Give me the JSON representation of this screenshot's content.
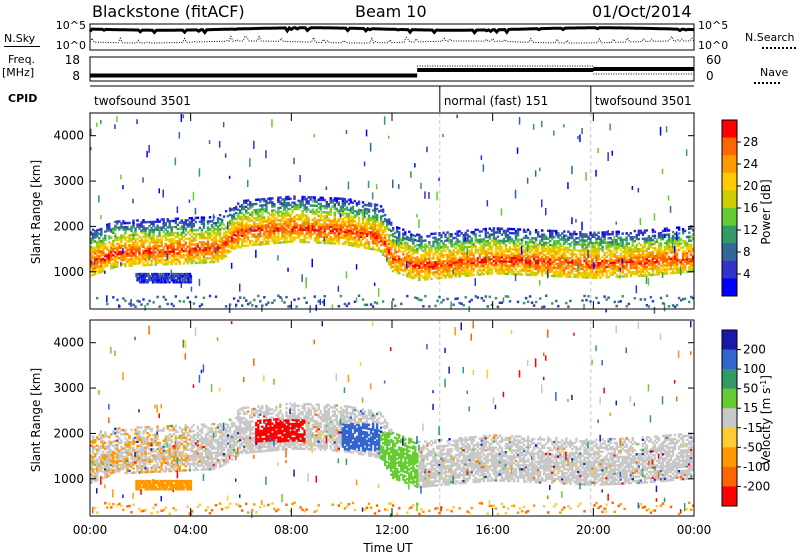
{
  "header": {
    "title": "Blackstone (fitACF)",
    "beam": "Beam 10",
    "date": "01/Oct/2014"
  },
  "top_panels": {
    "nsky_label": "N.Sky",
    "nsearch_label": "N.Search",
    "freq_label": "Freq.",
    "freq_unit": "[MHz]",
    "nave_label": "Nave",
    "cpid_label": "CPID",
    "nsky_ticks_left": [
      "10^5",
      "10^0"
    ],
    "nsky_ticks_right": [
      "10^5",
      "10^0"
    ],
    "freq_ticks": [
      "18",
      "8"
    ],
    "nave_ticks": [
      "60",
      "0"
    ]
  },
  "cpid_segments": [
    {
      "label": "twofsound 3501",
      "start_hour": 0,
      "end_hour": 13.9
    },
    {
      "label": "normal (fast) 151",
      "start_hour": 13.9,
      "end_hour": 19.9
    },
    {
      "label": "twofsound 3501",
      "start_hour": 19.9,
      "end_hour": 24
    }
  ],
  "power_colorbar": {
    "label": "Power [dB]",
    "ticks": [
      "28",
      "24",
      "20",
      "16",
      "12",
      "8",
      "4"
    ],
    "colors": [
      "#ff0000",
      "#ff6600",
      "#ff9900",
      "#ffcc00",
      "#cccc00",
      "#66cc33",
      "#339966",
      "#336699",
      "#3333cc",
      "#0000ff"
    ]
  },
  "velocity_colorbar": {
    "label": "Velocity [m s",
    "label_sup": "-1",
    "label_end": "]",
    "ticks": [
      "200",
      "100",
      "50",
      "15",
      "-15",
      "-50",
      "-100",
      "-200"
    ],
    "colors": [
      "#1a1aaa",
      "#3366cc",
      "#339966",
      "#66cc33",
      "#c8c8c8",
      "#ffcc33",
      "#ff9900",
      "#ff6600",
      "#ff0000"
    ]
  },
  "chart_data": {
    "type": "heatmap",
    "xlabel": "Time UT",
    "x_ticks": [
      "00:00",
      "04:00",
      "08:00",
      "12:00",
      "16:00",
      "20:00",
      "00:00"
    ],
    "xlim_hours": [
      0,
      24
    ],
    "ylabel": "Slant Range [km]",
    "y_ticks": [
      "4000",
      "3000",
      "2000",
      "1000"
    ],
    "ylim_km": [
      180,
      4500
    ],
    "freq_series_mhz": [
      {
        "start_hour": 0,
        "end_hour": 13,
        "value": 10.3
      },
      {
        "start_hour": 13,
        "end_hour": 20,
        "value": 12.6
      },
      {
        "start_hour": 20,
        "end_hour": 24,
        "value": 13.0
      }
    ],
    "power_main_echo_km": [
      [
        0,
        1200
      ],
      [
        1,
        1400
      ],
      [
        3,
        1450
      ],
      [
        5,
        1500
      ],
      [
        6,
        1850
      ],
      [
        8,
        1950
      ],
      [
        10,
        1900
      ],
      [
        11.5,
        1750
      ],
      [
        12,
        1300
      ],
      [
        13,
        1100
      ],
      [
        14,
        1150
      ],
      [
        16,
        1250
      ],
      [
        18,
        1200
      ],
      [
        20,
        1150
      ],
      [
        22,
        1200
      ],
      [
        24,
        1300
      ]
    ],
    "velocity_features": [
      {
        "start_hour": 6.5,
        "end_hour": 8.5,
        "range_km": [
          1800,
          2300
        ],
        "velocity": "-200"
      },
      {
        "start_hour": 10,
        "end_hour": 11.5,
        "range_km": [
          1600,
          2200
        ],
        "velocity": "100"
      },
      {
        "start_hour": 11.5,
        "end_hour": 13,
        "range_km": [
          800,
          2000
        ],
        "velocity": "50"
      }
    ]
  }
}
